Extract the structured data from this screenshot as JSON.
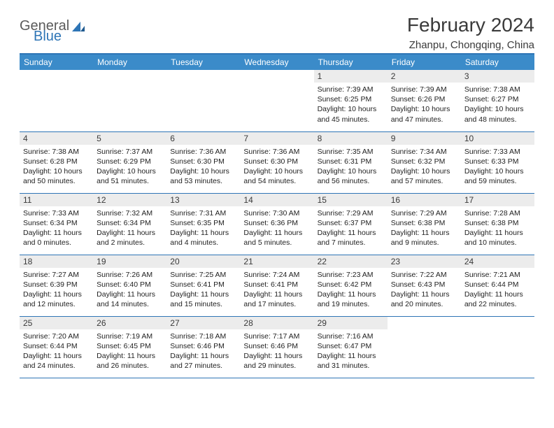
{
  "logo": {
    "general": "General",
    "blue": "Blue"
  },
  "title": "February 2024",
  "location": "Zhanpu, Chongqing, China",
  "colors": {
    "header_bg": "#3b8bc9",
    "header_text": "#ffffff",
    "border": "#2e75b6",
    "daynum_bg": "#ececec",
    "text": "#222222"
  },
  "dayNames": [
    "Sunday",
    "Monday",
    "Tuesday",
    "Wednesday",
    "Thursday",
    "Friday",
    "Saturday"
  ],
  "weeks": [
    [
      null,
      null,
      null,
      null,
      {
        "n": "1",
        "sr": "7:39 AM",
        "ss": "6:25 PM",
        "dl": "10 hours and 45 minutes."
      },
      {
        "n": "2",
        "sr": "7:39 AM",
        "ss": "6:26 PM",
        "dl": "10 hours and 47 minutes."
      },
      {
        "n": "3",
        "sr": "7:38 AM",
        "ss": "6:27 PM",
        "dl": "10 hours and 48 minutes."
      }
    ],
    [
      {
        "n": "4",
        "sr": "7:38 AM",
        "ss": "6:28 PM",
        "dl": "10 hours and 50 minutes."
      },
      {
        "n": "5",
        "sr": "7:37 AM",
        "ss": "6:29 PM",
        "dl": "10 hours and 51 minutes."
      },
      {
        "n": "6",
        "sr": "7:36 AM",
        "ss": "6:30 PM",
        "dl": "10 hours and 53 minutes."
      },
      {
        "n": "7",
        "sr": "7:36 AM",
        "ss": "6:30 PM",
        "dl": "10 hours and 54 minutes."
      },
      {
        "n": "8",
        "sr": "7:35 AM",
        "ss": "6:31 PM",
        "dl": "10 hours and 56 minutes."
      },
      {
        "n": "9",
        "sr": "7:34 AM",
        "ss": "6:32 PM",
        "dl": "10 hours and 57 minutes."
      },
      {
        "n": "10",
        "sr": "7:33 AM",
        "ss": "6:33 PM",
        "dl": "10 hours and 59 minutes."
      }
    ],
    [
      {
        "n": "11",
        "sr": "7:33 AM",
        "ss": "6:34 PM",
        "dl": "11 hours and 0 minutes."
      },
      {
        "n": "12",
        "sr": "7:32 AM",
        "ss": "6:34 PM",
        "dl": "11 hours and 2 minutes."
      },
      {
        "n": "13",
        "sr": "7:31 AM",
        "ss": "6:35 PM",
        "dl": "11 hours and 4 minutes."
      },
      {
        "n": "14",
        "sr": "7:30 AM",
        "ss": "6:36 PM",
        "dl": "11 hours and 5 minutes."
      },
      {
        "n": "15",
        "sr": "7:29 AM",
        "ss": "6:37 PM",
        "dl": "11 hours and 7 minutes."
      },
      {
        "n": "16",
        "sr": "7:29 AM",
        "ss": "6:38 PM",
        "dl": "11 hours and 9 minutes."
      },
      {
        "n": "17",
        "sr": "7:28 AM",
        "ss": "6:38 PM",
        "dl": "11 hours and 10 minutes."
      }
    ],
    [
      {
        "n": "18",
        "sr": "7:27 AM",
        "ss": "6:39 PM",
        "dl": "11 hours and 12 minutes."
      },
      {
        "n": "19",
        "sr": "7:26 AM",
        "ss": "6:40 PM",
        "dl": "11 hours and 14 minutes."
      },
      {
        "n": "20",
        "sr": "7:25 AM",
        "ss": "6:41 PM",
        "dl": "11 hours and 15 minutes."
      },
      {
        "n": "21",
        "sr": "7:24 AM",
        "ss": "6:41 PM",
        "dl": "11 hours and 17 minutes."
      },
      {
        "n": "22",
        "sr": "7:23 AM",
        "ss": "6:42 PM",
        "dl": "11 hours and 19 minutes."
      },
      {
        "n": "23",
        "sr": "7:22 AM",
        "ss": "6:43 PM",
        "dl": "11 hours and 20 minutes."
      },
      {
        "n": "24",
        "sr": "7:21 AM",
        "ss": "6:44 PM",
        "dl": "11 hours and 22 minutes."
      }
    ],
    [
      {
        "n": "25",
        "sr": "7:20 AM",
        "ss": "6:44 PM",
        "dl": "11 hours and 24 minutes."
      },
      {
        "n": "26",
        "sr": "7:19 AM",
        "ss": "6:45 PM",
        "dl": "11 hours and 26 minutes."
      },
      {
        "n": "27",
        "sr": "7:18 AM",
        "ss": "6:46 PM",
        "dl": "11 hours and 27 minutes."
      },
      {
        "n": "28",
        "sr": "7:17 AM",
        "ss": "6:46 PM",
        "dl": "11 hours and 29 minutes."
      },
      {
        "n": "29",
        "sr": "7:16 AM",
        "ss": "6:47 PM",
        "dl": "11 hours and 31 minutes."
      },
      null,
      null
    ]
  ],
  "labels": {
    "sunrise": "Sunrise:",
    "sunset": "Sunset:",
    "daylight": "Daylight:"
  }
}
